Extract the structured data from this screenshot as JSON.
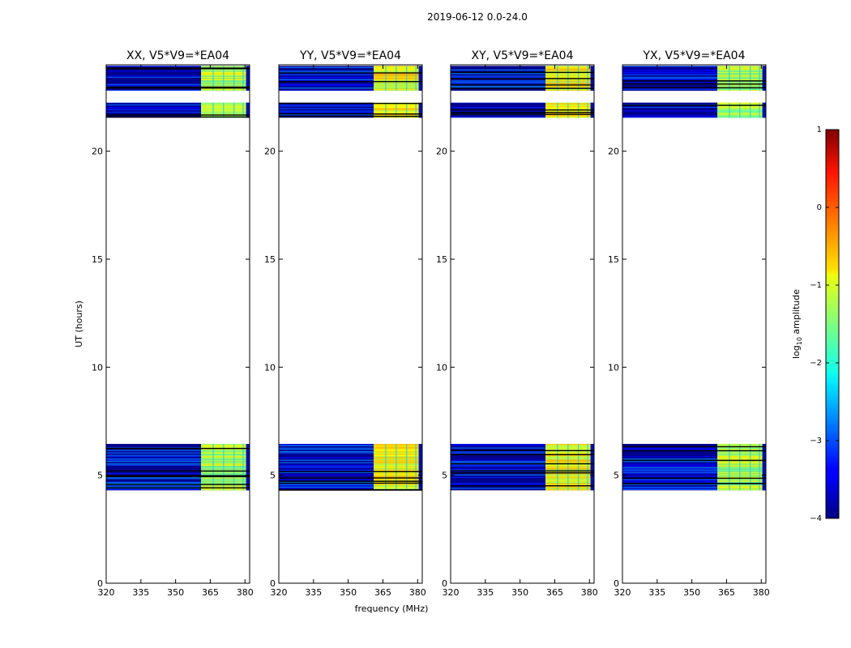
{
  "figure_title": "2019-06-12 0.0-24.0",
  "chart_data": {
    "type": "heatmap",
    "shared_ylabel": "UT (hours)",
    "shared_xlabel": "frequency (MHz)",
    "xlim": [
      320,
      382
    ],
    "ylim": [
      0,
      24
    ],
    "xticks": [
      320,
      335,
      350,
      365,
      380
    ],
    "yticks": [
      0,
      5,
      10,
      15,
      20
    ],
    "data_time_ranges_hours": [
      [
        4.3,
        6.45
      ],
      [
        21.55,
        23.95
      ]
    ],
    "gap_rows_hours": [
      [
        22.25,
        22.8
      ]
    ],
    "bright_band_mhz": [
      361,
      380.5
    ],
    "panels": [
      {
        "title": "XX, V5*V9=*EA04",
        "band_level": "mid"
      },
      {
        "title": "YY, V5*V9=*EA04",
        "band_level": "high"
      },
      {
        "title": "XY, V5*V9=*EA04",
        "band_level": "high"
      },
      {
        "title": "YX, V5*V9=*EA04",
        "band_level": "mid"
      }
    ],
    "colorbar": {
      "label": "log10 amplitude",
      "label_prefix": "log",
      "label_sub": "10",
      "label_suffix": " amplitude",
      "range": [
        -4,
        1
      ],
      "ticks": [
        1,
        0,
        -1,
        -2,
        -3,
        -4
      ],
      "colormap": "jet"
    }
  }
}
